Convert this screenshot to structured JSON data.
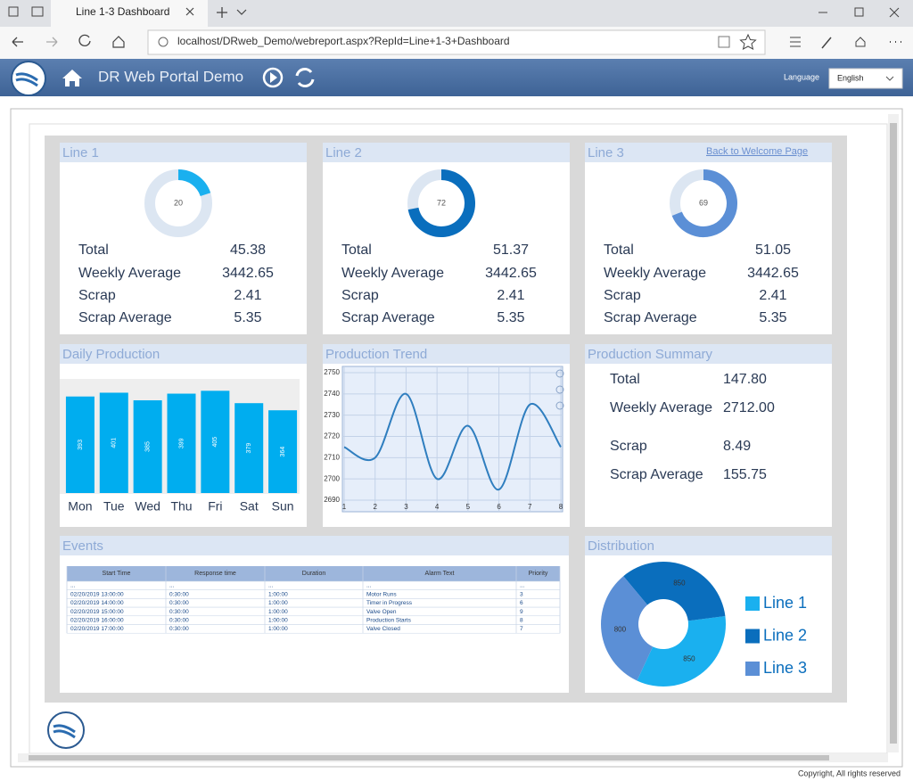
{
  "browser": {
    "tab_title": "Line 1-3 Dashboard",
    "url": "localhost/DRweb_Demo/webreport.aspx?RepId=Line+1-3+Dashboard"
  },
  "header": {
    "title": "DR Web Portal Demo",
    "language_label": "Language",
    "language": "English"
  },
  "back_link": "Back to Welcome Page",
  "lines": [
    {
      "title": "Line 1",
      "stats": [
        [
          "Total",
          "45.38"
        ],
        [
          "Weekly Average",
          "3442.65"
        ],
        [
          "Scrap",
          "2.41"
        ],
        [
          "Scrap Average",
          "5.35"
        ]
      ]
    },
    {
      "title": "Line 2",
      "stats": [
        [
          "Total",
          "51.37"
        ],
        [
          "Weekly Average",
          "3442.65"
        ],
        [
          "Scrap",
          "2.41"
        ],
        [
          "Scrap Average",
          "5.35"
        ]
      ]
    },
    {
      "title": "Line 3",
      "stats": [
        [
          "Total",
          "51.05"
        ],
        [
          "Weekly Average",
          "3442.65"
        ],
        [
          "Scrap",
          "2.41"
        ],
        [
          "Scrap Average",
          "5.35"
        ]
      ]
    }
  ],
  "summary": {
    "title": "Production Summary",
    "stats": [
      [
        "Total",
        "147.80"
      ],
      [
        "Weekly Average",
        "2712.00"
      ],
      [
        "Scrap",
        "8.49"
      ],
      [
        "Scrap Average",
        "155.75"
      ]
    ]
  },
  "events": {
    "title": "Events",
    "columns": [
      "Start Time",
      "Response time",
      "Duration",
      "Alarm Text",
      "Priority"
    ],
    "rows": [
      [
        "...",
        "...",
        "...",
        "...",
        "..."
      ],
      [
        "02/20/2019 13:00:00",
        "0:30:00",
        "1:00:00",
        "Motor Runs",
        "3"
      ],
      [
        "02/20/2019 14:00:00",
        "0:30:00",
        "1:00:00",
        "Timer in Progress",
        "6"
      ],
      [
        "02/20/2019 15:00:00",
        "0:30:00",
        "1:00:00",
        "Valve Open",
        "9"
      ],
      [
        "02/20/2019 16:00:00",
        "0:30:00",
        "1:00:00",
        "Production Starts",
        "8"
      ],
      [
        "02/20/2019 17:00:00",
        "0:30:00",
        "1:00:00",
        "Valve Closed",
        "7"
      ]
    ]
  },
  "chart_data": [
    {
      "type": "gauge",
      "value": 20,
      "ylim": [
        0,
        100
      ],
      "color": "#1ab0ef"
    },
    {
      "type": "gauge",
      "value": 72,
      "ylim": [
        0,
        100
      ],
      "color": "#0a6ebd"
    },
    {
      "type": "gauge",
      "value": 69,
      "ylim": [
        0,
        100
      ],
      "color": "#5b8fd6"
    },
    {
      "type": "bar",
      "title": "Daily Production",
      "categories": [
        "Mon",
        "Tue",
        "Wed",
        "Thu",
        "Fri",
        "Sat",
        "Sun"
      ],
      "values": [
        393,
        401,
        385,
        399,
        405,
        379,
        364
      ],
      "color": "#00adef",
      "ylim": [
        190,
        430
      ]
    },
    {
      "type": "line",
      "title": "Production Trend",
      "x": [
        1,
        2,
        3,
        4,
        5,
        6,
        7,
        8
      ],
      "values": [
        2715,
        2710,
        2740,
        2700,
        2725,
        2695,
        2735,
        2715
      ],
      "color": "#2f7ebf",
      "xlim": [
        1,
        8
      ],
      "xticks": [
        1,
        2,
        3,
        4,
        5,
        6,
        7,
        8
      ],
      "ylim": [
        2690,
        2750
      ],
      "yticks": [
        2690,
        2700,
        2710,
        2720,
        2730,
        2740,
        2750
      ],
      "grid": true
    },
    {
      "type": "donut",
      "title": "Distribution",
      "categories": [
        "Line 1",
        "Line 2",
        "Line 3"
      ],
      "values": [
        850,
        850,
        800
      ],
      "colors": [
        "#1ab0ef",
        "#0a6ebd",
        "#5b8fd6"
      ]
    }
  ],
  "footer": "Copyright, All rights reserved"
}
